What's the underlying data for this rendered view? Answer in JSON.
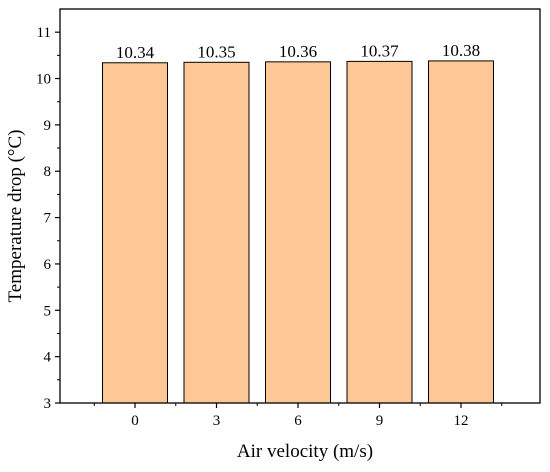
{
  "chart_data": {
    "type": "bar",
    "title": "",
    "xlabel": "Air velocity (m/s)",
    "ylabel": "Temperature drop (°C)",
    "categories": [
      "0",
      "3",
      "6",
      "9",
      "12"
    ],
    "values": [
      10.34,
      10.35,
      10.36,
      10.37,
      10.38
    ],
    "data_labels": [
      "10.34",
      "10.35",
      "10.36",
      "10.37",
      "10.38"
    ],
    "ylim": [
      3,
      11.5
    ],
    "yticks": [
      3,
      4,
      5,
      6,
      7,
      8,
      9,
      10,
      11
    ],
    "grid": false,
    "legend": "none",
    "bar_color": "#FDC896",
    "bar_edge_color": "#000000"
  }
}
